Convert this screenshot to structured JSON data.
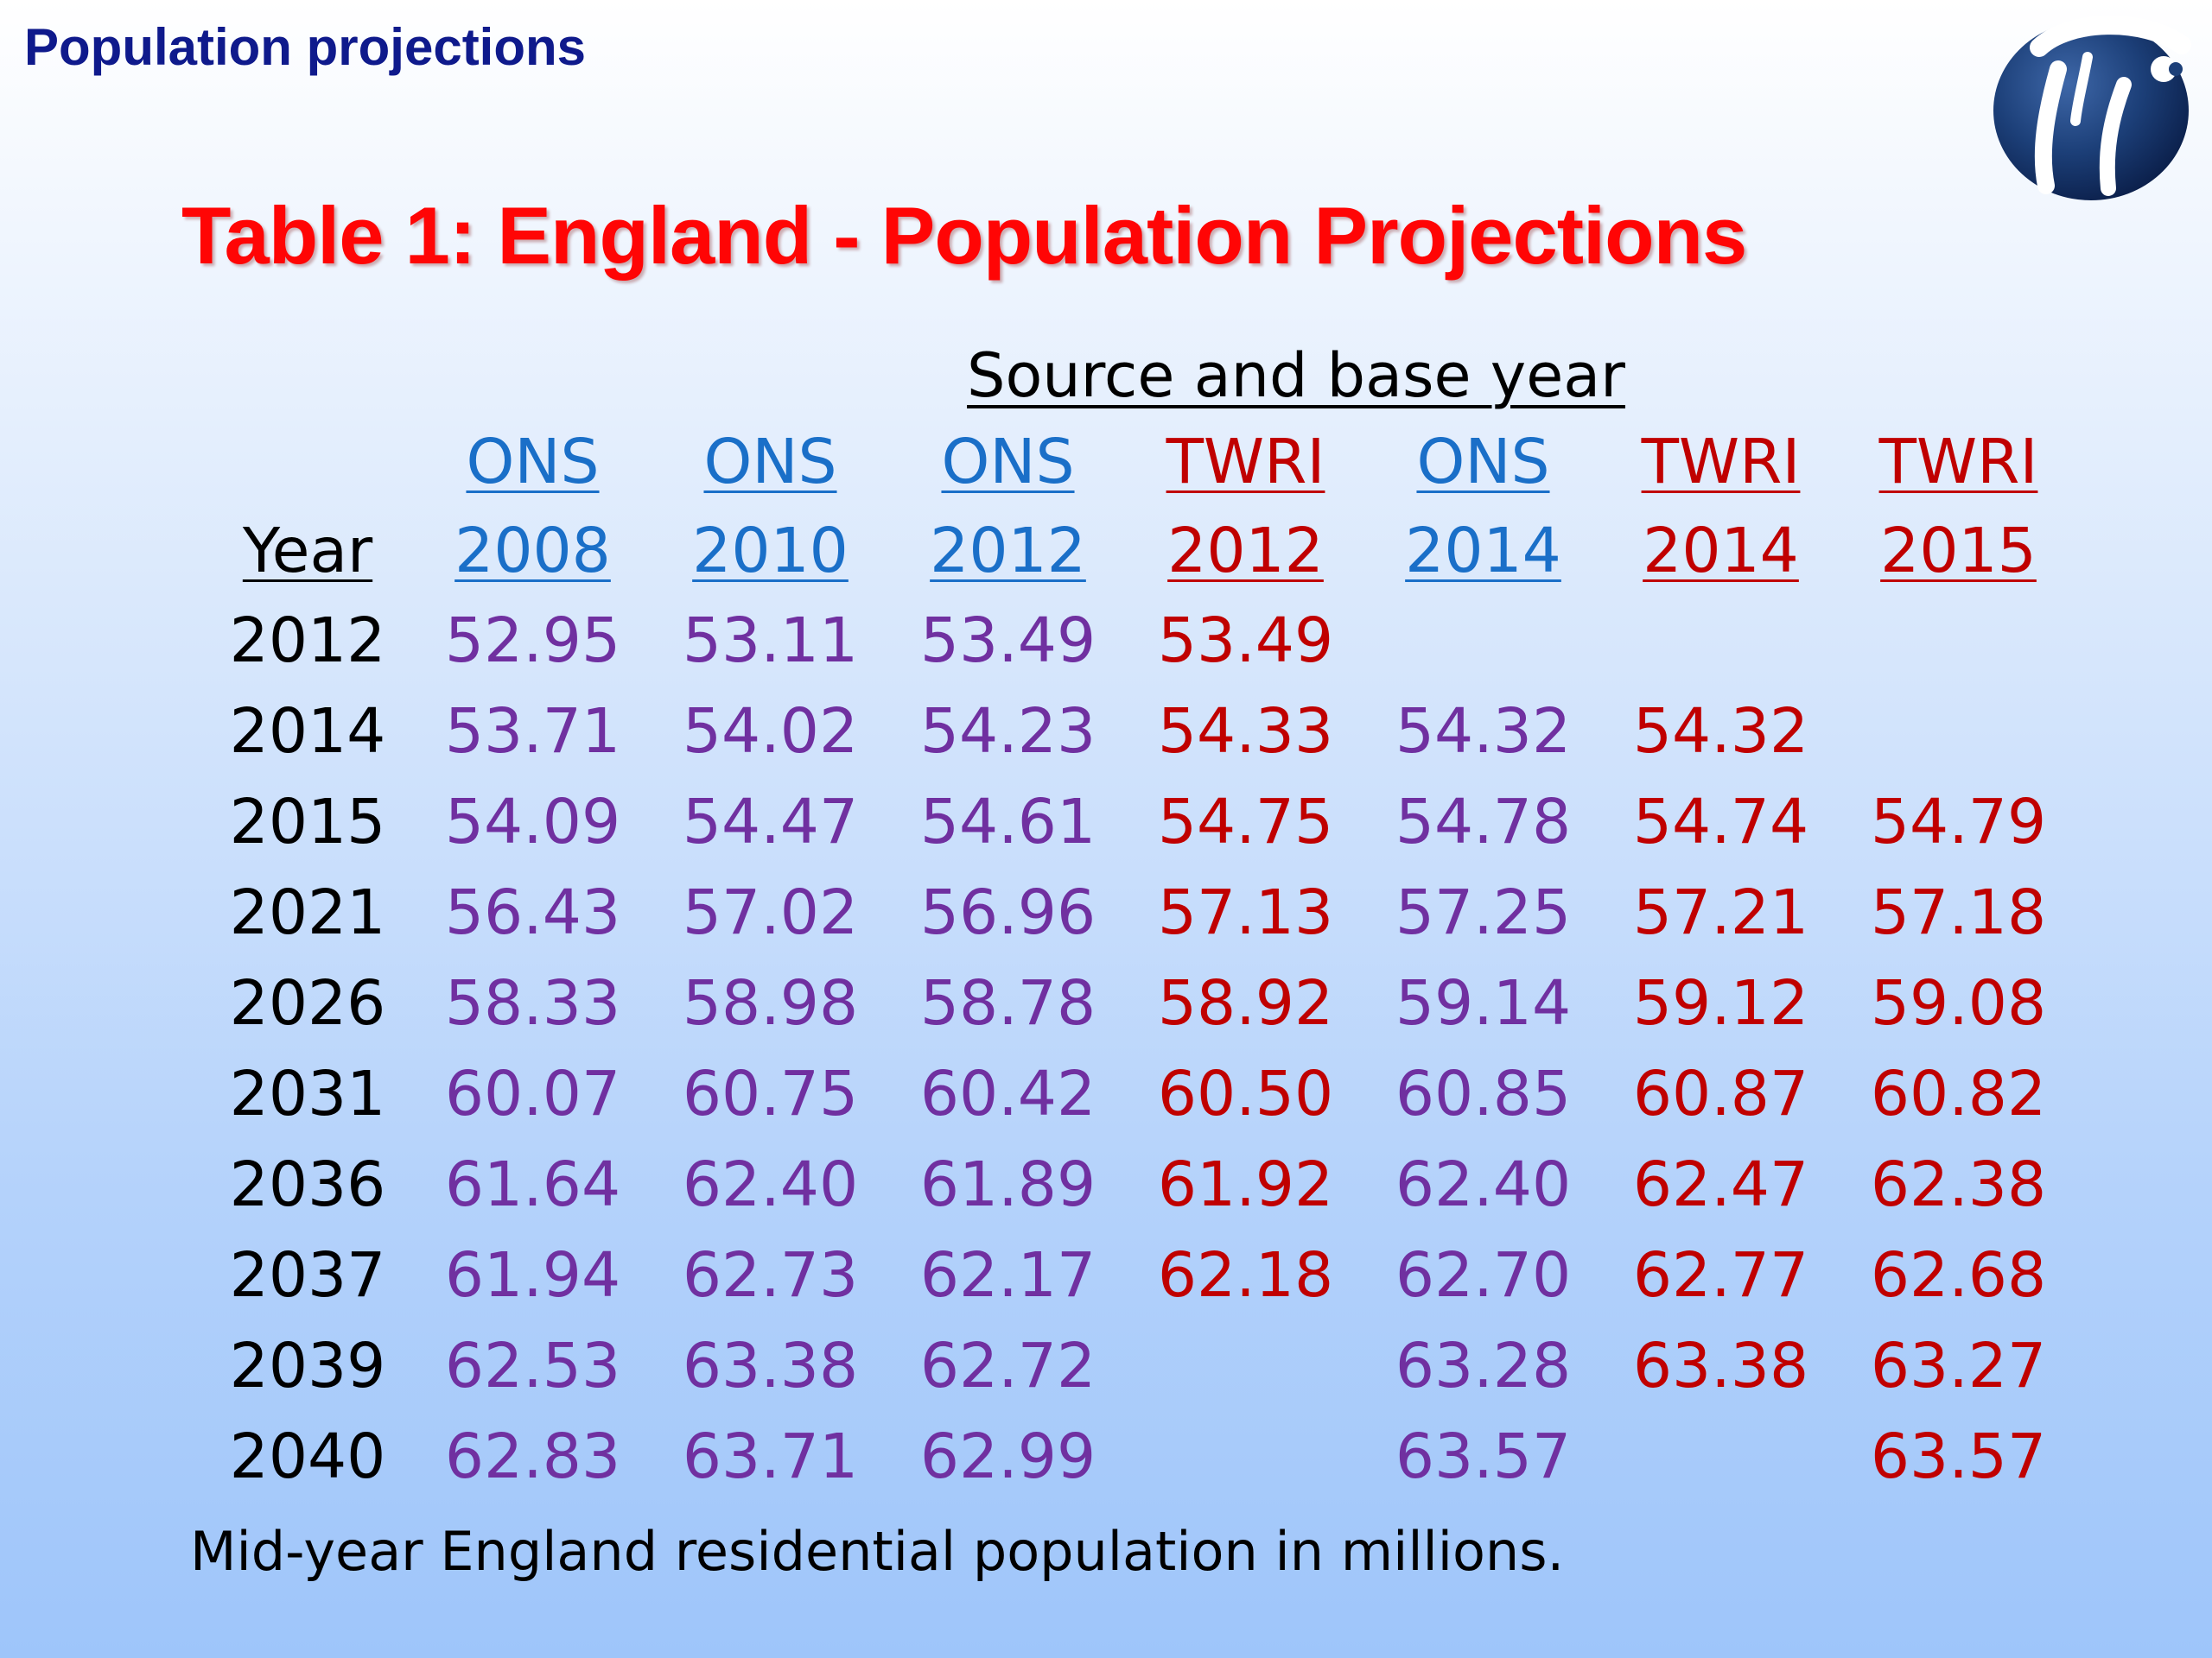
{
  "header": {
    "title": "Population projections"
  },
  "logo": {
    "icon": "organization-logo-icon",
    "colors": [
      "#1c3f78",
      "#0b1f4a"
    ]
  },
  "title": "Table 1: England - Population Projections",
  "source_heading": "Source and base year",
  "table": {
    "year_header": "Year",
    "columns": [
      {
        "source": "ONS",
        "base_year": "2008",
        "kind": "ons"
      },
      {
        "source": "ONS",
        "base_year": "2010",
        "kind": "ons"
      },
      {
        "source": "ONS",
        "base_year": "2012",
        "kind": "ons"
      },
      {
        "source": "TWRI",
        "base_year": "2012",
        "kind": "twri"
      },
      {
        "source": "ONS",
        "base_year": "2014",
        "kind": "ons"
      },
      {
        "source": "TWRI",
        "base_year": "2014",
        "kind": "twri"
      },
      {
        "source": "TWRI",
        "base_year": "2015",
        "kind": "twri"
      }
    ],
    "rows": [
      {
        "year": "2012",
        "values": [
          "52.95",
          "53.11",
          "53.49",
          "53.49",
          "",
          "",
          ""
        ]
      },
      {
        "year": "2014",
        "values": [
          "53.71",
          "54.02",
          "54.23",
          "54.33",
          "54.32",
          "54.32",
          ""
        ]
      },
      {
        "year": "2015",
        "values": [
          "54.09",
          "54.47",
          "54.61",
          "54.75",
          "54.78",
          "54.74",
          "54.79"
        ]
      },
      {
        "year": "2021",
        "values": [
          "56.43",
          "57.02",
          "56.96",
          "57.13",
          "57.25",
          "57.21",
          "57.18"
        ]
      },
      {
        "year": "2026",
        "values": [
          "58.33",
          "58.98",
          "58.78",
          "58.92",
          "59.14",
          "59.12",
          "59.08"
        ]
      },
      {
        "year": "2031",
        "values": [
          "60.07",
          "60.75",
          "60.42",
          "60.50",
          "60.85",
          "60.87",
          "60.82"
        ]
      },
      {
        "year": "2036",
        "values": [
          "61.64",
          "62.40",
          "61.89",
          "61.92",
          "62.40",
          "62.47",
          "62.38"
        ]
      },
      {
        "year": "2037",
        "values": [
          "61.94",
          "62.73",
          "62.17",
          "62.18",
          "62.70",
          "62.77",
          "62.68"
        ]
      },
      {
        "year": "2039",
        "values": [
          "62.53",
          "63.38",
          "62.72",
          "",
          "63.28",
          "63.38",
          "63.27"
        ]
      },
      {
        "year": "2040",
        "values": [
          "62.83",
          "63.71",
          "62.99",
          "",
          "63.57",
          "",
          "63.57"
        ]
      }
    ]
  },
  "footnote": "Mid-year England residential population in millions.",
  "colors": {
    "header_title": "#0f1a8c",
    "main_title": "#ff0505",
    "ons_header": "#1a6fc8",
    "ons_value": "#7030a0",
    "twri": "#c00000"
  }
}
